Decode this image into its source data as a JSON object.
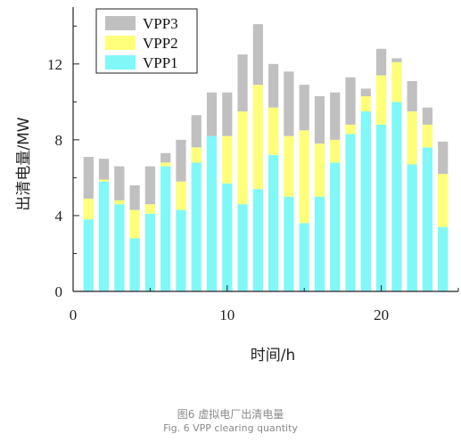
{
  "chart_data": {
    "type": "bar",
    "stacked": true,
    "xlabel": "时间/h",
    "ylabel": "出清电量/MW",
    "xlim": [
      0,
      25
    ],
    "ylim": [
      0,
      15
    ],
    "xticks": [
      0,
      10,
      20
    ],
    "yticks": [
      0,
      4,
      8,
      12
    ],
    "grid": false,
    "legend_position": "top-left",
    "categories": [
      1,
      2,
      3,
      4,
      5,
      6,
      7,
      8,
      9,
      10,
      11,
      12,
      13,
      14,
      15,
      16,
      17,
      18,
      19,
      20,
      21,
      22,
      23,
      24
    ],
    "series": [
      {
        "name": "VPP1",
        "color": "#80f8f8",
        "values": [
          3.8,
          5.8,
          4.6,
          2.8,
          4.1,
          6.6,
          4.3,
          6.8,
          8.2,
          5.7,
          4.6,
          5.4,
          7.2,
          5.0,
          3.6,
          5.0,
          6.8,
          8.3,
          9.5,
          8.8,
          10.0,
          6.7,
          7.6,
          3.4
        ]
      },
      {
        "name": "VPP2",
        "color": "#ffff7a",
        "values": [
          1.1,
          0.1,
          0.2,
          1.5,
          0.5,
          0.2,
          1.5,
          0.8,
          0.0,
          2.5,
          4.9,
          5.5,
          2.5,
          3.2,
          4.9,
          2.8,
          1.2,
          0.5,
          0.8,
          2.6,
          2.1,
          2.8,
          1.2,
          2.8
        ]
      },
      {
        "name": "VPP3",
        "color": "#c0c0c0",
        "values": [
          2.2,
          1.1,
          1.8,
          1.3,
          2.0,
          0.5,
          2.2,
          1.7,
          2.3,
          2.3,
          3.0,
          3.2,
          2.3,
          3.4,
          2.4,
          2.5,
          2.5,
          2.5,
          0.4,
          1.4,
          0.2,
          1.6,
          0.9,
          1.7
        ]
      }
    ]
  },
  "caption": {
    "cn": "图6 虚拟电厂出清电量",
    "en": "Fig. 6 VPP clearing quantity"
  }
}
